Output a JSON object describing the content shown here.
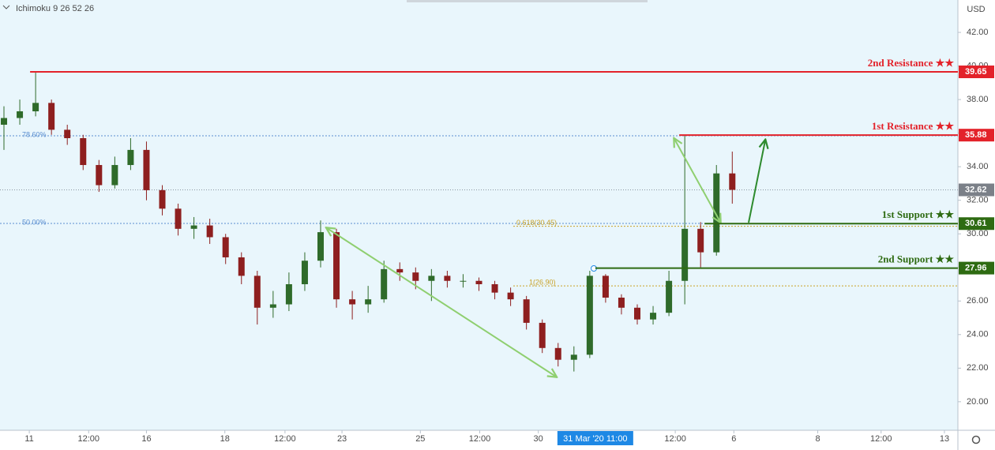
{
  "chart_data": {
    "type": "candlestick",
    "indicator": "Ichimoku 9 26 52 26",
    "currency": "USD",
    "x": [
      0.5,
      2.5,
      4.5,
      6.5,
      8.5,
      10.5,
      12.5,
      14.5,
      16.5,
      18.5,
      20.5,
      22.5,
      24.5,
      26.5,
      28.5,
      30.5,
      32.5,
      34.5,
      36.5,
      38.5,
      40.5,
      42.5,
      44.5,
      46.5,
      48.5,
      50.5,
      52.5,
      54.5,
      56.5,
      58.5,
      60.5,
      62.5,
      64.5,
      66.5,
      68.5,
      70.5,
      72.5,
      74.5,
      76.5,
      78.5,
      80.5,
      82.5,
      84.5,
      86.5,
      88.5,
      90.5,
      92.5
    ],
    "open": [
      36.5,
      36.9,
      37.3,
      37.8,
      36.2,
      35.7,
      34.1,
      32.9,
      34.1,
      35.0,
      32.6,
      31.5,
      30.3,
      30.5,
      29.8,
      28.6,
      27.5,
      25.6,
      25.8,
      27.0,
      28.4,
      30.1,
      26.1,
      25.8,
      26.1,
      27.9,
      27.7,
      27.2,
      27.5,
      27.2,
      27.2,
      27.0,
      26.5,
      26.1,
      24.7,
      23.2,
      22.5,
      22.8,
      27.5,
      26.2,
      25.6,
      24.9,
      25.3,
      27.2,
      30.3,
      28.9,
      33.6
    ],
    "high": [
      37.6,
      38.0,
      39.6,
      38.0,
      36.5,
      35.9,
      34.4,
      34.6,
      35.7,
      35.5,
      32.9,
      31.8,
      31.0,
      30.9,
      30.0,
      28.9,
      27.8,
      26.6,
      27.7,
      28.9,
      30.8,
      30.3,
      26.6,
      26.9,
      28.4,
      28.3,
      28.0,
      27.9,
      27.8,
      27.6,
      27.4,
      27.2,
      26.8,
      26.3,
      24.9,
      23.5,
      23.3,
      27.8,
      27.6,
      26.4,
      25.8,
      25.7,
      27.8,
      35.9,
      30.7,
      34.1,
      34.9
    ],
    "low": [
      35.0,
      36.5,
      37.0,
      35.9,
      35.3,
      33.8,
      32.5,
      32.7,
      33.8,
      32.0,
      31.1,
      29.9,
      29.7,
      29.4,
      28.2,
      27.0,
      24.6,
      25.0,
      25.4,
      26.6,
      28.0,
      25.6,
      24.9,
      25.3,
      25.9,
      27.2,
      26.7,
      26.0,
      26.8,
      26.8,
      26.6,
      26.1,
      25.7,
      24.3,
      22.9,
      22.1,
      21.8,
      22.6,
      25.9,
      25.2,
      24.6,
      24.6,
      25.1,
      25.8,
      28.0,
      28.7,
      31.8
    ],
    "close": [
      36.9,
      37.3,
      37.8,
      36.2,
      35.7,
      34.1,
      32.9,
      34.1,
      35.0,
      32.6,
      31.5,
      30.3,
      30.5,
      29.8,
      28.6,
      27.5,
      25.6,
      25.8,
      27.0,
      28.4,
      30.1,
      26.1,
      25.8,
      26.1,
      27.9,
      27.7,
      27.2,
      27.5,
      27.2,
      27.2,
      27.0,
      26.5,
      26.1,
      24.7,
      23.2,
      22.5,
      22.8,
      27.5,
      26.2,
      25.6,
      24.9,
      25.3,
      27.2,
      30.3,
      28.9,
      33.6,
      32.62
    ],
    "up_color": "#2f6b2a",
    "down_color": "#8e1f1f",
    "xlim": [
      0,
      121
    ],
    "ylim": [
      18.3,
      43.93
    ],
    "yticks": [
      {
        "value": 20,
        "label": "20.00"
      },
      {
        "value": 22,
        "label": "22.00"
      },
      {
        "value": 24,
        "label": "24.00"
      },
      {
        "value": 26,
        "label": "26.00"
      },
      {
        "value": 28,
        "label": "28.00"
      },
      {
        "value": 30,
        "label": "30.00"
      },
      {
        "value": 32,
        "label": "32.00"
      },
      {
        "value": 34,
        "label": "34.00"
      },
      {
        "value": 36,
        "label": "36.00"
      },
      {
        "value": 38,
        "label": "38.00"
      },
      {
        "value": 40,
        "label": "40.00"
      },
      {
        "value": 42,
        "label": "42.00"
      }
    ],
    "xticks": [
      {
        "value": 3.7,
        "label": "11"
      },
      {
        "value": 11.2,
        "label": "12:00"
      },
      {
        "value": 18.5,
        "label": "16"
      },
      {
        "value": 28.4,
        "label": "18"
      },
      {
        "value": 36.0,
        "label": "12:00"
      },
      {
        "value": 43.2,
        "label": "23"
      },
      {
        "value": 53.1,
        "label": "25"
      },
      {
        "value": 60.6,
        "label": "12:00"
      },
      {
        "value": 68.0,
        "label": "30"
      },
      {
        "value": 85.3,
        "label": "12:00"
      },
      {
        "value": 92.7,
        "label": "6"
      },
      {
        "value": 103.3,
        "label": "8"
      },
      {
        "value": 111.3,
        "label": "12:00"
      },
      {
        "value": 119.3,
        "label": "13"
      }
    ],
    "crosshair": {
      "value": 75.2,
      "label": "31 Mar '20   11:00"
    },
    "levels": [
      {
        "label": "2nd Resistance ★★",
        "value": 39.65,
        "value_label": "39.65",
        "color": "#e3222a",
        "start": 3.8
      },
      {
        "label": "1st Resistance ★★",
        "value": 35.88,
        "value_label": "35.88",
        "color": "#e3222a",
        "start": 85.8
      },
      {
        "label": "1st Support ★★",
        "value": 30.61,
        "value_label": "30.61",
        "color": "#2e6b12",
        "start": 89.0
      },
      {
        "label": "2nd Support ★★",
        "value": 27.96,
        "value_label": "27.96",
        "color": "#2e6b12",
        "start": 75.2
      }
    ],
    "fib_lines": [
      {
        "label": "78.60%",
        "value": 35.84,
        "color": "#5b8fd0"
      },
      {
        "label": "50.00%",
        "value": 30.62,
        "color": "#5b8fd0"
      },
      {
        "label": "0.618(30.45)",
        "value": 30.45,
        "color": "#c9a227"
      },
      {
        "label": "1(26.90)",
        "value": 26.9,
        "color": "#c9a227"
      }
    ],
    "last_price": {
      "value": 32.62,
      "label": "32.62",
      "color": "#7b8088"
    }
  }
}
